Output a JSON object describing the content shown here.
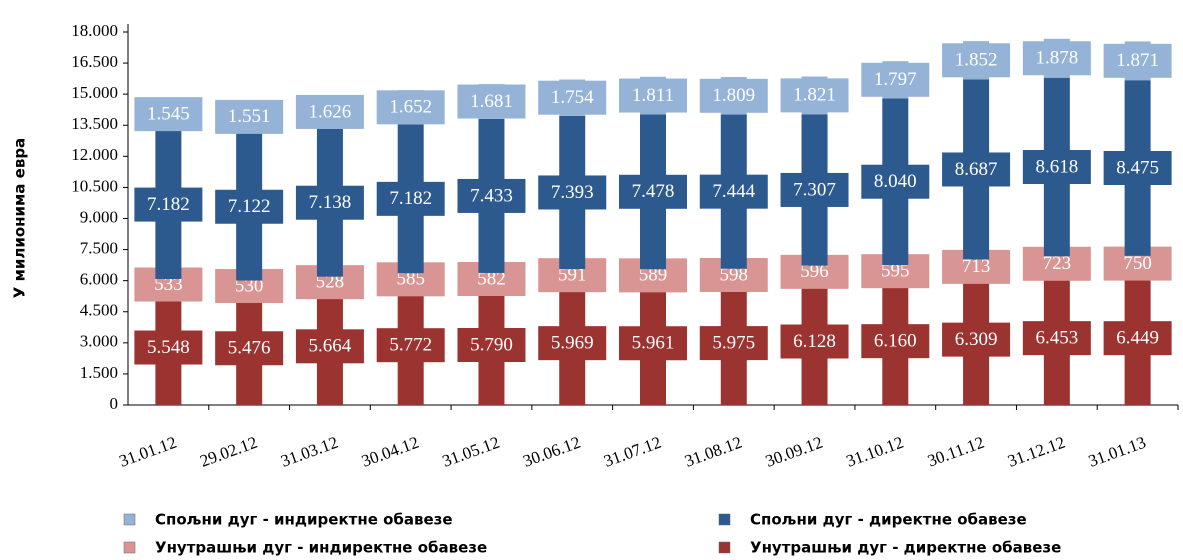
{
  "chart_data": {
    "type": "stacked_bar",
    "y_label": "У милионима евра",
    "categories": [
      "31.01.12",
      "29.02.12",
      "31.03.12",
      "30.04.12",
      "31.05.12",
      "30.06.12",
      "31.07.12",
      "31.08.12",
      "30.09.12",
      "31.10.12",
      "30.11.12",
      "31.12.12",
      "31.01.13"
    ],
    "series": [
      {
        "name": "Унутрашњи дуг - директне обавезе",
        "color": "#9b3331",
        "values": [
          5548,
          5476,
          5664,
          5772,
          5790,
          5969,
          5961,
          5975,
          6128,
          6160,
          6309,
          6453,
          6449
        ],
        "value_labels": [
          "5.548",
          "5.476",
          "5.664",
          "5.772",
          "5.790",
          "5.969",
          "5.961",
          "5.975",
          "6.128",
          "6.160",
          "6.309",
          "6.453",
          "6.449"
        ]
      },
      {
        "name": "Унутрашњи дуг - индиректне обавезе",
        "color": "#d99593",
        "values": [
          533,
          530,
          528,
          585,
          582,
          591,
          589,
          598,
          596,
          595,
          713,
          723,
          750
        ]
      },
      {
        "name": "Спољни дуг - директне обавезе",
        "color": "#2d5a8e",
        "values": [
          7182,
          7122,
          7138,
          7182,
          7433,
          7393,
          7478,
          7444,
          7307,
          8040,
          8687,
          8618,
          8475
        ],
        "value_labels": [
          "7.182",
          "7.122",
          "7.138",
          "7.182",
          "7.433",
          "7.393",
          "7.478",
          "7.444",
          "7.307",
          "8.040",
          "8.687",
          "8.618",
          "8.475"
        ]
      },
      {
        "name": "Спољни дуг - индиректне обавезе",
        "color": "#95b3d7",
        "values": [
          1545,
          1551,
          1626,
          1652,
          1681,
          1754,
          1811,
          1809,
          1821,
          1797,
          1852,
          1878,
          1871
        ],
        "value_labels": [
          "1.545",
          "1.551",
          "1.626",
          "1.652",
          "1.681",
          "1.754",
          "1.811",
          "1.809",
          "1.821",
          "1.797",
          "1.852",
          "1.878",
          "1.871"
        ]
      }
    ],
    "ylim": [
      0,
      18000
    ],
    "yticks": [
      0,
      {
        "value": 1500,
        "label": "1.500"
      },
      {
        "value": 3000,
        "label": "3.000"
      },
      {
        "value": 4500,
        "label": "4.500"
      },
      {
        "value": 6000,
        "label": "6.000"
      },
      {
        "value": 7500,
        "label": "7.500"
      },
      {
        "value": 9000,
        "label": "9.000"
      },
      {
        "value": 10500,
        "label": "10.500"
      },
      {
        "value": 12000,
        "label": "12.000"
      },
      {
        "value": 13500,
        "label": "13.500"
      },
      {
        "value": 15000,
        "label": "15.000"
      },
      {
        "value": 16500,
        "label": "16.500"
      },
      {
        "value": 18000,
        "label": "18.000"
      }
    ],
    "grid": false
  }
}
